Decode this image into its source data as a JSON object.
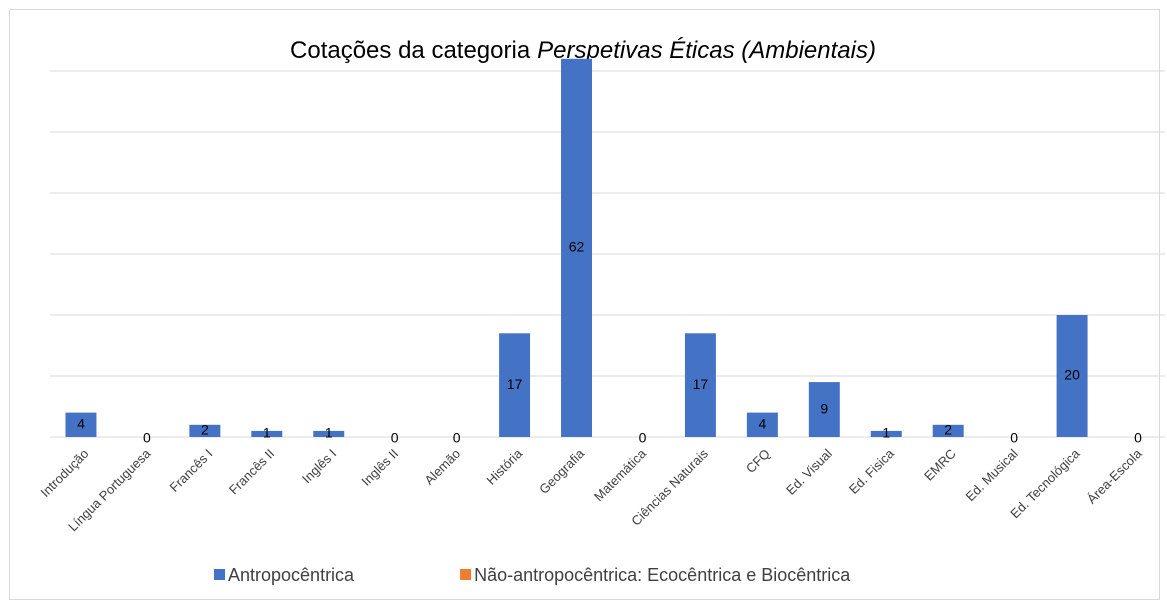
{
  "chart_data": {
    "type": "bar",
    "title": "Cotações da categoria",
    "title_italic": "Perspetivas Éticas (Ambientais)",
    "categories": [
      "Introdução",
      "Língua Portuguesa",
      "Francês I",
      "Francês II",
      "Inglês I",
      "Inglês II",
      "Alemão",
      "História",
      "Geografia",
      "Matemática",
      "Ciências Naturais",
      "CFQ",
      "Ed. Visual",
      "Ed. Fisica",
      "EMRC",
      "Ed. Musical",
      "Ed. Tecnológica",
      "Área-Escola"
    ],
    "series": [
      {
        "name": "Antropocêntrica",
        "color": "#4472c4",
        "values": [
          4,
          0,
          2,
          1,
          1,
          0,
          0,
          17,
          62,
          0,
          17,
          4,
          9,
          1,
          2,
          0,
          20,
          0
        ]
      },
      {
        "name": "Não-antropocêntrica: Ecocêntrica e Biocêntrica",
        "color": "#ed7d31",
        "values": [
          null,
          null,
          null,
          null,
          null,
          null,
          null,
          null,
          null,
          null,
          null,
          null,
          null,
          null,
          null,
          null,
          null,
          null
        ]
      }
    ],
    "ylim": [
      0,
      60
    ],
    "yticks": [
      0,
      10,
      20,
      30,
      40,
      50,
      60
    ],
    "grid": true,
    "legend": "bottom"
  }
}
